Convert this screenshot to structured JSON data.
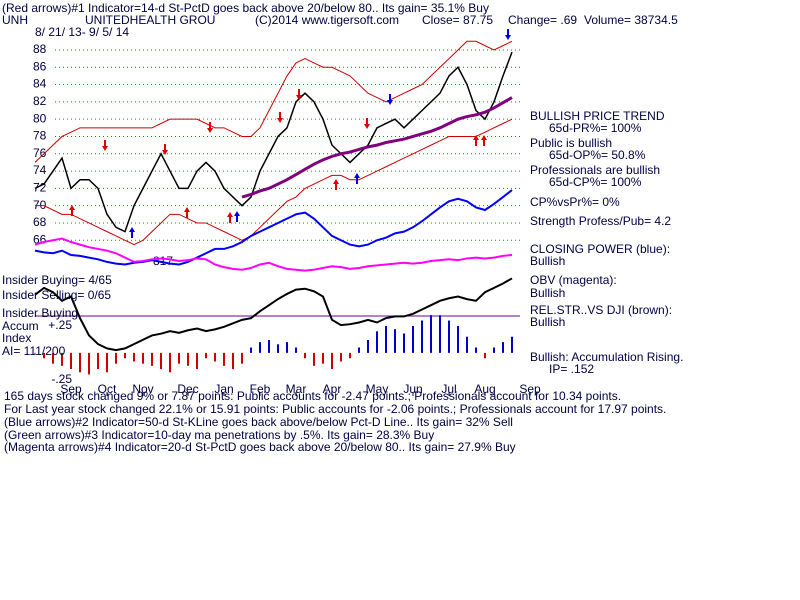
{
  "header": {
    "line1": "(Red arrows)#1 Indicator=14-d St-PctD goes back above 20/below 80..  Its gain= 35.1% Buy",
    "ticker": "UNH",
    "company": "UNITEDHEALTH GROU",
    "copyright": "(C)2014 www.tigersoft.com",
    "close": "Close=  87.75",
    "change": "Change= .69",
    "volume": "Volume= 38734.5",
    "dates": "8/ 21/ 13-  9/ 5/ 14"
  },
  "annotation": "817",
  "left_notes": [
    "Insider Buying= 4/65",
    "Insider Selling= 0/65",
    "Insider Buying",
    "Accum",
    "Index",
    "AI= 111/200"
  ],
  "right_notes": [
    "BULLISH PRICE TREND",
    "65d-PR%= 100%",
    "Public is bullish",
    "65d-OP%= 50.8%",
    "Professionals are bullish",
    "65d-CP%= 100%",
    "CP%vsPr%=  0%",
    "Strength Profess/Pub= 4.2",
    "CLOSING POWER (blue):",
    "Bullish",
    "OBV (magenta):",
    "Bullish",
    "REL.STR..VS DJI (brown):",
    "Bullish",
    "Bullish: Accumulation Rising.",
    "IP=  .152"
  ],
  "footer": [
    "165 days stock changed  9% or  7.87 points:  Public accounts for -2.47 points.;  Professionals account for  10.34 points.",
    " For Last year stock changed  22.1% or  15.91 points:  Public accounts for -2.06 points.;  Professionals account for  17.97 points.",
    "(Blue arrows)#2 Indicator=50-d St-KLine goes back above/below Pct-D Line..  Its gain= 32% Sell",
    "(Green arrows)#3 Indicator=10-day ma penetrations by .5%.  Its gain= 28.3% Buy",
    "(Magenta arrows)#4 Indicator=20-d St-PctD goes back above 20/below 80..  Its gain= 27.9% Buy"
  ],
  "chart_data": {
    "type": "line",
    "categories": [
      null,
      null,
      null,
      null,
      "Sep",
      null,
      null,
      null,
      "Oct",
      null,
      null,
      null,
      "Nov",
      null,
      null,
      null,
      null,
      "Dec",
      null,
      null,
      null,
      "Jan",
      null,
      null,
      null,
      "Feb",
      null,
      null,
      null,
      "Mar",
      null,
      null,
      null,
      "Apr",
      null,
      null,
      null,
      null,
      "May",
      null,
      null,
      null,
      "Jun",
      null,
      null,
      null,
      "Jul",
      null,
      null,
      null,
      "Aug",
      null,
      null,
      null,
      null,
      "Sep"
    ],
    "ylim": [
      48,
      91
    ],
    "yticks": [
      66,
      68,
      70,
      72,
      74,
      76,
      78,
      80,
      82,
      84,
      86,
      88
    ],
    "grid": true,
    "grid_color": "#00a000",
    "y2lim": [
      -0.4,
      0.5
    ],
    "y2ticks": [
      {
        "value": 0.25,
        "label": "+.25"
      },
      {
        "value": -0.25,
        "label": "-.25"
      }
    ],
    "series": [
      {
        "color": "#000000",
        "values": [
          72,
          72.5,
          74,
          75.5,
          72,
          73,
          73,
          72,
          69,
          67.5,
          67,
          70,
          72,
          74,
          76,
          74,
          72,
          72,
          74,
          75,
          74,
          72,
          71,
          70,
          71,
          74,
          76,
          78,
          79,
          82,
          83,
          82,
          80,
          77,
          76,
          75,
          76,
          77,
          79,
          79.5,
          80,
          79,
          80,
          81,
          82,
          83,
          85,
          86,
          84,
          81,
          80,
          82,
          85,
          87.75,
          null,
          null
        ]
      },
      {
        "color": "#cc0000",
        "values": [
          75,
          76,
          77,
          78,
          78.5,
          79,
          79,
          79,
          79,
          79,
          79,
          79,
          79,
          79,
          79.5,
          80,
          80,
          80,
          80,
          79.5,
          79,
          79,
          78.5,
          78,
          78,
          79,
          81,
          83,
          85,
          86.5,
          87,
          86.5,
          86,
          86,
          85.5,
          85,
          84,
          83,
          82.5,
          82,
          82.5,
          83,
          83.5,
          84,
          85,
          86,
          87,
          88,
          89,
          89,
          88.5,
          88,
          88.5,
          89,
          null,
          null
        ]
      },
      {
        "color": "#cc0000",
        "values": [
          70,
          70,
          69.5,
          69,
          69,
          68.5,
          68,
          67.5,
          67,
          66.5,
          66,
          65.5,
          66,
          67,
          68,
          69,
          69,
          68.5,
          68,
          68,
          67.5,
          67,
          66.5,
          66,
          66.5,
          67.5,
          68.5,
          69.5,
          70.5,
          71,
          72,
          72.5,
          73,
          73.5,
          73.5,
          73,
          73,
          73.5,
          74,
          74.5,
          75,
          75.5,
          76,
          76.5,
          77,
          77.5,
          78,
          78,
          78,
          78,
          78.5,
          79,
          79.5,
          80,
          null,
          null
        ]
      },
      {
        "color": "#800080",
        "values": [
          null,
          null,
          null,
          null,
          null,
          null,
          null,
          null,
          null,
          null,
          null,
          null,
          null,
          null,
          null,
          null,
          null,
          null,
          null,
          null,
          null,
          null,
          null,
          71,
          71.3,
          71.7,
          72,
          72.5,
          73,
          73.6,
          74.2,
          74.8,
          75.3,
          75.7,
          76,
          76.2,
          76.5,
          76.8,
          77,
          77.3,
          77.5,
          77.7,
          78,
          78.3,
          78.6,
          79,
          79.5,
          80,
          80.3,
          80.5,
          80.8,
          81.3,
          81.9,
          82.5,
          null,
          null
        ]
      },
      {
        "color": "#0000ff",
        "values": [
          64.8,
          64.6,
          64.5,
          64.8,
          64.3,
          64.2,
          64,
          63.8,
          63.5,
          63.3,
          63.2,
          63.4,
          63.5,
          63.7,
          63.5,
          63.3,
          63.2,
          63.5,
          64,
          64.5,
          65,
          65,
          65.3,
          65.8,
          66.5,
          67,
          67.5,
          68,
          68.5,
          69,
          69.2,
          68.5,
          67.5,
          66.5,
          66,
          65.5,
          65.3,
          65.5,
          66,
          66.3,
          66.8,
          67,
          67.5,
          68.2,
          69,
          69.8,
          70.5,
          70.8,
          70.5,
          69.8,
          69.5,
          70.2,
          71,
          71.8,
          null,
          null
        ]
      },
      {
        "color": "#ff00ff",
        "values": [
          65.5,
          65.8,
          66,
          66.2,
          65.8,
          65.5,
          65.2,
          65,
          64.8,
          64.5,
          64,
          63.5,
          63.6,
          63.8,
          63.9,
          63.8,
          63.6,
          63.7,
          63.9,
          63.8,
          63.2,
          62.9,
          62.7,
          62.6,
          62.8,
          63.2,
          63.4,
          63,
          62.7,
          62.6,
          62.5,
          62.6,
          62.8,
          63,
          62.9,
          62.7,
          62.8,
          63,
          63.1,
          63.2,
          63.3,
          63.4,
          63.3,
          63.4,
          63.6,
          63.7,
          63.8,
          63.7,
          63.9,
          64,
          63.9,
          64,
          64.2,
          64.3,
          null,
          null
        ]
      },
      {
        "color": "#000000",
        "values": [
          59.7,
          60.5,
          60,
          59,
          59.5,
          57,
          55,
          54,
          53.5,
          53.3,
          53.5,
          54,
          54.5,
          55,
          55.2,
          55.5,
          55.3,
          55.6,
          55.8,
          55.5,
          55.7,
          56,
          56.4,
          56.8,
          57,
          57.8,
          58.5,
          59.2,
          59.8,
          60.3,
          60.4,
          60.1,
          59.5,
          56.8,
          56.2,
          56.3,
          56.5,
          56.8,
          56.5,
          57,
          57.2,
          57.2,
          57.5,
          58,
          58.5,
          59,
          59.3,
          59.5,
          59.2,
          59,
          60,
          60.5,
          61,
          61.6,
          null,
          null
        ]
      },
      {
        "type": "bar",
        "axis": "y2",
        "pos_color": "#0000cc",
        "neg_color": "#cc0000",
        "values": [
          0,
          -0.05,
          -0.1,
          -0.12,
          -0.15,
          -0.18,
          -0.2,
          -0.15,
          -0.18,
          -0.1,
          -0.05,
          -0.08,
          -0.1,
          -0.12,
          -0.15,
          -0.18,
          -0.1,
          -0.12,
          -0.15,
          -0.05,
          -0.08,
          -0.12,
          -0.15,
          -0.1,
          0.05,
          0.1,
          0.12,
          0.08,
          0.1,
          0.05,
          -0.05,
          -0.12,
          -0.1,
          -0.15,
          -0.08,
          -0.05,
          0.05,
          0.12,
          0.2,
          0.25,
          0.22,
          0.18,
          0.25,
          0.3,
          0.35,
          0.35,
          0.3,
          0.25,
          0.15,
          0.05,
          -0.05,
          0.05,
          0.1,
          0.15,
          null,
          null
        ]
      }
    ]
  }
}
